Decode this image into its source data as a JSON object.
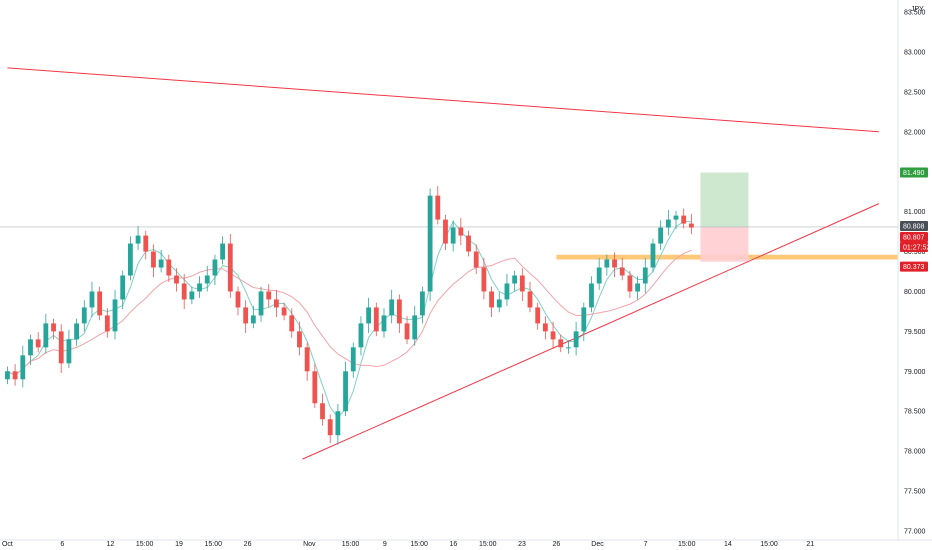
{
  "symbol_label": "JPY",
  "colors": {
    "up": "#26a69a",
    "down": "#ef5350",
    "trendline": "#f23645",
    "support_zone": "#ffb74d",
    "ma_fast": "#7fd1c6",
    "ma_slow": "#f4a3a8",
    "target_zone": "#c8e6c9",
    "stop_zone": "#ffcdd2",
    "target_badge": "#2e9e3f",
    "price_badge": "#4a4e57",
    "red_badge": "#e0212a",
    "crosshair": "#b2b5be"
  },
  "chart_data": {
    "type": "candlestick",
    "title": "",
    "xlabel": "",
    "ylabel": "",
    "ylim": [
      77.0,
      83.5
    ],
    "grid": false,
    "y_ticks": [
      "77.000",
      "77.500",
      "78.000",
      "78.500",
      "79.000",
      "79.500",
      "80.000",
      "80.500",
      "81.000",
      "81.500",
      "82.000",
      "82.500",
      "83.000",
      "83.500"
    ],
    "x_ticks": [
      "Oct",
      "6",
      "12",
      "15:00",
      "19",
      "15:00",
      "26",
      "Nov",
      "15:00",
      "9",
      "15:00",
      "16",
      "15:00",
      "23",
      "26",
      "Dec",
      "7",
      "15:00",
      "14",
      "15:00",
      "21"
    ],
    "x_tick_index": [
      0,
      8,
      15,
      20,
      25,
      30,
      35,
      44,
      50,
      55,
      60,
      65,
      70,
      75,
      80,
      86,
      93,
      99,
      105,
      111,
      117
    ],
    "closes": [
      79.0,
      78.9,
      79.2,
      79.4,
      79.3,
      79.6,
      79.5,
      79.1,
      79.4,
      79.6,
      79.8,
      80.0,
      79.7,
      79.5,
      79.9,
      80.2,
      80.6,
      80.7,
      80.5,
      80.3,
      80.4,
      80.2,
      80.1,
      79.9,
      80.0,
      80.1,
      80.2,
      80.4,
      80.6,
      80.0,
      79.8,
      79.6,
      79.7,
      80.0,
      79.9,
      79.8,
      79.7,
      79.5,
      79.3,
      79.0,
      78.6,
      78.4,
      78.2,
      78.5,
      79.0,
      79.3,
      79.6,
      79.8,
      79.5,
      79.7,
      79.9,
      79.6,
      79.4,
      79.7,
      80.0,
      81.2,
      80.9,
      80.6,
      80.8,
      80.7,
      80.5,
      80.3,
      80.0,
      79.8,
      79.9,
      80.1,
      80.2,
      80.0,
      79.8,
      79.6,
      79.5,
      79.4,
      79.3,
      79.3,
      79.5,
      79.8,
      80.1,
      80.3,
      80.4,
      80.3,
      80.2,
      80.0,
      80.1,
      80.3,
      80.6,
      80.8,
      80.9,
      80.95,
      80.85,
      80.8
    ],
    "price_levels": {
      "target": 81.49,
      "entry": 80.808,
      "current": 80.807,
      "stop": 80.373,
      "support_zone": [
        80.4,
        80.46
      ]
    },
    "trendlines": [
      {
        "name": "upper",
        "x": [
          0,
          127
        ],
        "y": [
          82.8,
          82.0
        ]
      },
      {
        "name": "lower",
        "x": [
          43,
          127
        ],
        "y": [
          77.9,
          81.1
        ]
      }
    ],
    "badges": {
      "target_label": "81.490",
      "entry_label": "80.808",
      "current_label": "80.807",
      "countdown_label": "01:27:52",
      "stop_label": "80.373"
    }
  }
}
